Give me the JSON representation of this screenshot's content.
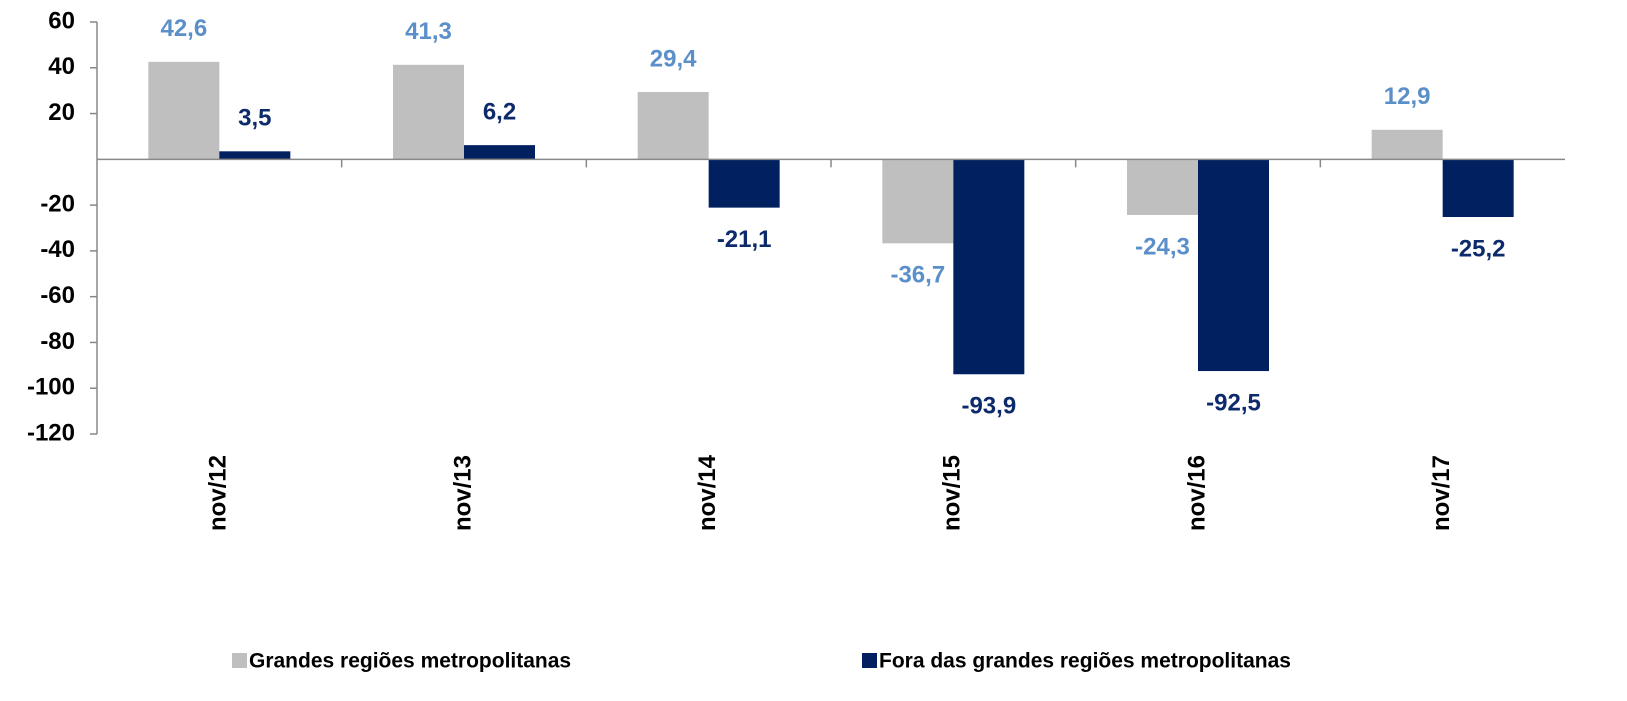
{
  "chart_data": {
    "type": "bar",
    "categories": [
      "nov/12",
      "nov/13",
      "nov/14",
      "nov/15",
      "nov/16",
      "nov/17"
    ],
    "series": [
      {
        "name": "Grandes regiões metropolitanas",
        "color": "#bfbfbf",
        "label_color": "#5b8fc9",
        "values": [
          42.6,
          41.3,
          29.4,
          -36.7,
          -24.3,
          12.9
        ],
        "value_labels": [
          "42,6",
          "41,3",
          "29,4",
          "-36,7",
          "-24,3",
          "12,9"
        ]
      },
      {
        "name": "Fora das grandes regiões metropolitanas",
        "color": "#002060",
        "label_color": "#0d2a6b",
        "values": [
          3.5,
          6.2,
          -21.1,
          -93.9,
          -92.5,
          -25.2
        ],
        "value_labels": [
          "3,5",
          "6,2",
          "-21,1",
          "-93,9",
          "-92,5",
          "-25,2"
        ]
      }
    ],
    "ylim": [
      -120,
      60
    ],
    "yticks": [
      60,
      40,
      20,
      -20,
      -40,
      -60,
      -80,
      -100,
      -120
    ],
    "legend": "bottom"
  }
}
